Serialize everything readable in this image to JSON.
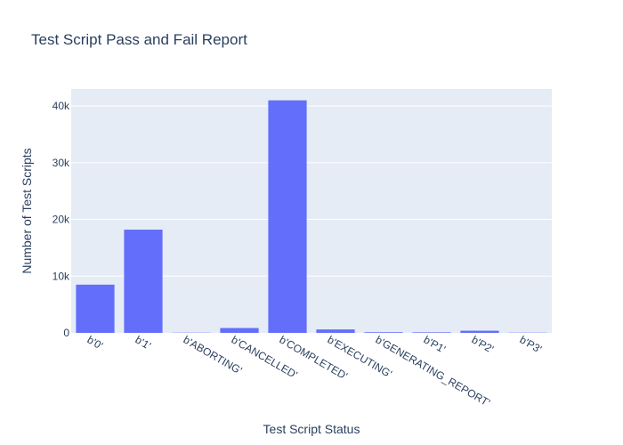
{
  "chart_data": {
    "type": "bar",
    "title": "Test Script Pass and Fail Report",
    "xlabel": "Test Script Status",
    "ylabel": "Number of Test Scripts",
    "categories": [
      "b'0'",
      "b'1'",
      "b'ABORTING'",
      "b'CANCELLED'",
      "b'COMPLETED'",
      "b'EXECUTING'",
      "b'GENERATING_REPORT'",
      "b'P1'",
      "b'P2'",
      "b'P3'"
    ],
    "values": [
      8500,
      18200,
      40,
      850,
      41000,
      600,
      120,
      100,
      380,
      40
    ],
    "ylim": [
      0,
      43000
    ],
    "yticks": [
      0,
      10000,
      20000,
      30000,
      40000
    ],
    "ytick_labels": [
      "0",
      "10k",
      "20k",
      "30k",
      "40k"
    ],
    "grid": true,
    "colors": {
      "bar": "#636efa",
      "plot_bg": "#e5ecf6",
      "grid": "#ffffff",
      "text": "#2a3f5f"
    }
  }
}
